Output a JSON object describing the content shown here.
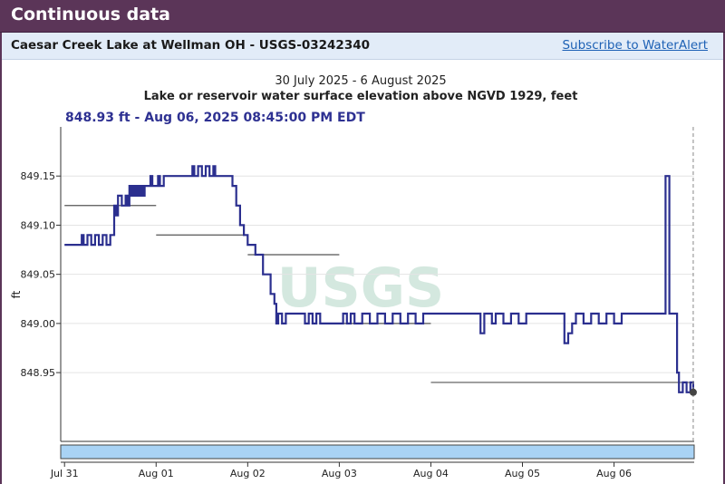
{
  "header": {
    "title": "Continuous data"
  },
  "site": {
    "name": "Caesar Creek Lake at Wellman OH - USGS-03242340",
    "subscribe_label": "Subscribe to WaterAlert"
  },
  "colors": {
    "header_bg": "#5b3558",
    "site_bar_bg": "#e2ecf8",
    "series": "#2b2f8f",
    "readout": "#2e3192",
    "brush": "#a9d3f5",
    "link": "#1d61b5"
  },
  "chart_data": {
    "type": "line",
    "title": "30 July 2025 - 6 August 2025",
    "subtitle": "Lake or reservoir water surface elevation above NGVD 1929, feet",
    "readout": "848.93 ft - Aug 06, 2025 08:45:00 PM EDT",
    "watermark": "USGS",
    "ylabel": "ft",
    "xlabel": "",
    "ylim": [
      848.88,
      849.2
    ],
    "yticks": [
      848.95,
      849.0,
      849.05,
      849.1,
      849.15
    ],
    "ytick_labels": [
      "848.95",
      "849.00",
      "849.05",
      "849.10",
      "849.15"
    ],
    "xlim": [
      "2025-07-30T23:00",
      "2025-08-06T21:00"
    ],
    "xticks": [
      "2025-07-31T00:00",
      "2025-08-01T00:00",
      "2025-08-02T00:00",
      "2025-08-03T00:00",
      "2025-08-04T00:00",
      "2025-08-05T00:00",
      "2025-08-06T00:00"
    ],
    "xtick_labels": [
      "Jul 31",
      "Aug 01",
      "Aug 02",
      "Aug 03",
      "Aug 04",
      "Aug 05",
      "Aug 06"
    ],
    "grid": "horizontal",
    "series": [
      {
        "values": [
          [
            "2025-07-31T00:00",
            849.08
          ],
          [
            "2025-07-31T04:00",
            849.08
          ],
          [
            "2025-07-31T04:30",
            849.09
          ],
          [
            "2025-07-31T05:00",
            849.08
          ],
          [
            "2025-07-31T06:00",
            849.09
          ],
          [
            "2025-07-31T07:00",
            849.08
          ],
          [
            "2025-07-31T08:00",
            849.09
          ],
          [
            "2025-07-31T09:00",
            849.08
          ],
          [
            "2025-07-31T10:00",
            849.09
          ],
          [
            "2025-07-31T11:00",
            849.08
          ],
          [
            "2025-07-31T12:00",
            849.09
          ],
          [
            "2025-07-31T12:30",
            849.09
          ],
          [
            "2025-07-31T13:00",
            849.12
          ],
          [
            "2025-07-31T13:30",
            849.11
          ],
          [
            "2025-07-31T14:00",
            849.13
          ],
          [
            "2025-07-31T15:00",
            849.12
          ],
          [
            "2025-07-31T16:00",
            849.13
          ],
          [
            "2025-07-31T16:30",
            849.12
          ],
          [
            "2025-07-31T17:00",
            849.14
          ],
          [
            "2025-07-31T17:30",
            849.13
          ],
          [
            "2025-07-31T18:00",
            849.14
          ],
          [
            "2025-07-31T18:30",
            849.13
          ],
          [
            "2025-07-31T19:00",
            849.14
          ],
          [
            "2025-07-31T19:30",
            849.13
          ],
          [
            "2025-07-31T20:00",
            849.14
          ],
          [
            "2025-07-31T20:30",
            849.13
          ],
          [
            "2025-07-31T21:00",
            849.14
          ],
          [
            "2025-07-31T22:00",
            849.14
          ],
          [
            "2025-07-31T22:30",
            849.15
          ],
          [
            "2025-07-31T23:00",
            849.14
          ],
          [
            "2025-08-01T00:00",
            849.14
          ],
          [
            "2025-08-01T00:30",
            849.15
          ],
          [
            "2025-08-01T01:00",
            849.14
          ],
          [
            "2025-08-01T02:00",
            849.15
          ],
          [
            "2025-08-01T09:00",
            849.15
          ],
          [
            "2025-08-01T09:30",
            849.16
          ],
          [
            "2025-08-01T10:00",
            849.15
          ],
          [
            "2025-08-01T11:00",
            849.16
          ],
          [
            "2025-08-01T12:00",
            849.15
          ],
          [
            "2025-08-01T13:00",
            849.16
          ],
          [
            "2025-08-01T14:00",
            849.15
          ],
          [
            "2025-08-01T15:00",
            849.16
          ],
          [
            "2025-08-01T15:30",
            849.15
          ],
          [
            "2025-08-01T19:00",
            849.15
          ],
          [
            "2025-08-01T20:00",
            849.14
          ],
          [
            "2025-08-01T21:00",
            849.12
          ],
          [
            "2025-08-01T22:00",
            849.1
          ],
          [
            "2025-08-01T23:00",
            849.09
          ],
          [
            "2025-08-02T00:00",
            849.08
          ],
          [
            "2025-08-02T02:00",
            849.07
          ],
          [
            "2025-08-02T04:00",
            849.05
          ],
          [
            "2025-08-02T06:00",
            849.03
          ],
          [
            "2025-08-02T07:00",
            849.02
          ],
          [
            "2025-08-02T07:30",
            849.0
          ],
          [
            "2025-08-02T08:00",
            849.01
          ],
          [
            "2025-08-02T09:00",
            849.0
          ],
          [
            "2025-08-02T10:00",
            849.01
          ],
          [
            "2025-08-02T14:00",
            849.01
          ],
          [
            "2025-08-02T15:00",
            849.0
          ],
          [
            "2025-08-02T16:00",
            849.01
          ],
          [
            "2025-08-02T17:00",
            849.0
          ],
          [
            "2025-08-02T18:00",
            849.01
          ],
          [
            "2025-08-02T19:00",
            849.0
          ],
          [
            "2025-08-03T00:00",
            849.0
          ],
          [
            "2025-08-03T01:00",
            849.01
          ],
          [
            "2025-08-03T02:00",
            849.0
          ],
          [
            "2025-08-03T03:00",
            849.01
          ],
          [
            "2025-08-03T04:00",
            849.0
          ],
          [
            "2025-08-03T06:00",
            849.01
          ],
          [
            "2025-08-03T08:00",
            849.0
          ],
          [
            "2025-08-03T10:00",
            849.01
          ],
          [
            "2025-08-03T12:00",
            849.0
          ],
          [
            "2025-08-03T14:00",
            849.01
          ],
          [
            "2025-08-03T16:00",
            849.0
          ],
          [
            "2025-08-03T18:00",
            849.01
          ],
          [
            "2025-08-03T20:00",
            849.0
          ],
          [
            "2025-08-03T22:00",
            849.01
          ],
          [
            "2025-08-04T00:00",
            849.01
          ],
          [
            "2025-08-04T12:00",
            849.01
          ],
          [
            "2025-08-04T13:00",
            848.99
          ],
          [
            "2025-08-04T14:00",
            849.01
          ],
          [
            "2025-08-04T16:00",
            849.0
          ],
          [
            "2025-08-04T17:00",
            849.01
          ],
          [
            "2025-08-04T19:00",
            849.0
          ],
          [
            "2025-08-04T21:00",
            849.01
          ],
          [
            "2025-08-04T23:00",
            849.0
          ],
          [
            "2025-08-05T01:00",
            849.01
          ],
          [
            "2025-08-05T03:00",
            849.01
          ],
          [
            "2025-08-05T10:00",
            849.01
          ],
          [
            "2025-08-05T11:00",
            848.98
          ],
          [
            "2025-08-05T12:00",
            848.99
          ],
          [
            "2025-08-05T13:00",
            849.0
          ],
          [
            "2025-08-05T14:00",
            849.01
          ],
          [
            "2025-08-05T16:00",
            849.0
          ],
          [
            "2025-08-05T18:00",
            849.01
          ],
          [
            "2025-08-05T20:00",
            849.0
          ],
          [
            "2025-08-05T22:00",
            849.01
          ],
          [
            "2025-08-06T00:00",
            849.0
          ],
          [
            "2025-08-06T02:00",
            849.01
          ],
          [
            "2025-08-06T06:00",
            849.01
          ],
          [
            "2025-08-06T13:00",
            849.01
          ],
          [
            "2025-08-06T13:30",
            849.15
          ],
          [
            "2025-08-06T14:00",
            849.15
          ],
          [
            "2025-08-06T14:30",
            849.01
          ],
          [
            "2025-08-06T15:30",
            849.01
          ],
          [
            "2025-08-06T16:30",
            848.95
          ],
          [
            "2025-08-06T17:00",
            848.93
          ],
          [
            "2025-08-06T18:00",
            848.94
          ],
          [
            "2025-08-06T19:00",
            848.93
          ],
          [
            "2025-08-06T20:00",
            848.94
          ],
          [
            "2025-08-06T20:45",
            848.93
          ]
        ]
      }
    ],
    "reference_segments": [
      {
        "x_start": "2025-07-31T00:00",
        "x_end": "2025-08-01T00:00",
        "y": 849.12
      },
      {
        "x_start": "2025-08-01T00:00",
        "x_end": "2025-08-02T00:00",
        "y": 849.09
      },
      {
        "x_start": "2025-08-02T00:00",
        "x_end": "2025-08-03T00:00",
        "y": 849.07
      },
      {
        "x_start": "2025-08-03T00:00",
        "x_end": "2025-08-04T00:00",
        "y": 849.0
      },
      {
        "x_start": "2025-08-04T00:00",
        "x_end": "2025-08-06T21:00",
        "y": 848.94
      }
    ],
    "cursor": {
      "x": "2025-08-06T20:45",
      "y": 848.93
    }
  }
}
